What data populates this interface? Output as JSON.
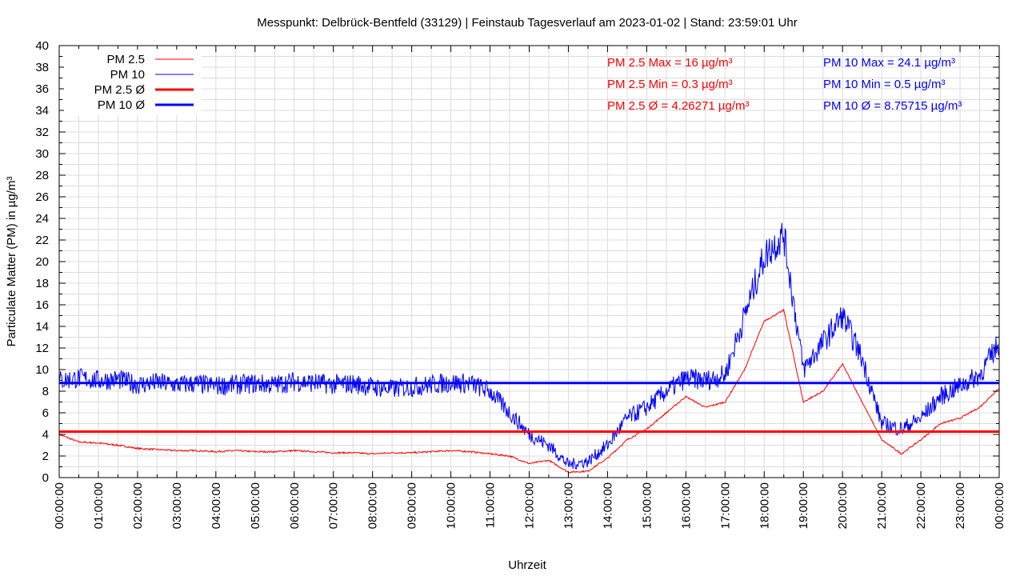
{
  "chart_data": {
    "type": "line",
    "title": "Messpunkt: Delbrück-Bentfeld (33129) | Feinstaub Tagesverlauf am 2023-01-02 | Stand: 23:59:01 Uhr",
    "xlabel": "Uhrzeit",
    "ylabel": "Particulate Matter (PM) in µg/m³",
    "ylim": [
      0,
      40
    ],
    "yticks": [
      "0",
      "2",
      "4",
      "6",
      "8",
      "10",
      "12",
      "14",
      "16",
      "18",
      "20",
      "22",
      "24",
      "26",
      "28",
      "30",
      "32",
      "34",
      "36",
      "38",
      "40"
    ],
    "xticks": [
      "00:00:00",
      "01:00:00",
      "02:00:00",
      "03:00:00",
      "04:00:00",
      "05:00:00",
      "06:00:00",
      "07:00:00",
      "08:00:00",
      "09:00:00",
      "10:00:00",
      "11:00:00",
      "12:00:00",
      "13:00:00",
      "14:00:00",
      "15:00:00",
      "16:00:00",
      "17:00:00",
      "18:00:00",
      "19:00:00",
      "20:00:00",
      "21:00:00",
      "22:00:00",
      "23:00:00",
      "00:00:00"
    ],
    "grid": true,
    "legend_position": "top-left",
    "x_hours": [
      0,
      0.5,
      1,
      1.5,
      2,
      2.5,
      3,
      3.5,
      4,
      4.5,
      5,
      5.5,
      6,
      6.5,
      7,
      7.5,
      8,
      8.5,
      9,
      9.5,
      10,
      10.5,
      11,
      11.5,
      12,
      12.5,
      13,
      13.5,
      14,
      14.5,
      15,
      15.5,
      16,
      16.5,
      17,
      17.5,
      18,
      18.5,
      19,
      19.5,
      20,
      20.5,
      21,
      21.5,
      22,
      22.5,
      23,
      23.5,
      24
    ],
    "series": [
      {
        "name": "PM 2.5",
        "color": "#ff0000",
        "values": [
          4,
          3.3,
          3.2,
          3,
          2.7,
          2.6,
          2.5,
          2.5,
          2.4,
          2.5,
          2.4,
          2.4,
          2.5,
          2.4,
          2.3,
          2.3,
          2.2,
          2.3,
          2.3,
          2.4,
          2.5,
          2.4,
          2.2,
          2,
          1.3,
          1.6,
          0.5,
          0.6,
          1.8,
          3.5,
          4.5,
          6,
          7.5,
          6.5,
          7,
          10,
          14.5,
          15.5,
          7,
          8,
          10.5,
          7,
          3.5,
          2.2,
          3.5,
          5,
          5.5,
          6.5,
          8.3
        ]
      },
      {
        "name": "PM 10",
        "color": "#0000ff",
        "values": [
          9,
          9.2,
          9,
          9.1,
          8.6,
          8.8,
          8.6,
          8.7,
          8.5,
          8.6,
          8.7,
          8.6,
          8.9,
          8.8,
          8.6,
          8.7,
          8.4,
          8.2,
          8.4,
          8.6,
          8.8,
          8.7,
          8,
          6,
          4,
          3,
          1.2,
          1.5,
          3,
          5.5,
          6.5,
          8,
          9.2,
          9,
          9.5,
          15,
          20.5,
          22.5,
          10,
          12.5,
          15,
          11,
          5,
          4.5,
          5.5,
          7.5,
          8.5,
          9.5,
          12.5
        ]
      },
      {
        "name": "PM 2.5 Ø",
        "color": "#ff0000",
        "value": 4.26271
      },
      {
        "name": "PM 10 Ø",
        "color": "#0000ff",
        "value": 8.75715
      }
    ],
    "legend": [
      "PM 2.5",
      "PM 10",
      "PM 2.5 Ø",
      "PM 10 Ø"
    ],
    "annotations": {
      "pm25": [
        "PM 2.5 Max = 16 µg/m³",
        "PM 2.5 Min = 0.3 µg/m³",
        "PM 2.5 Ø = 4.26271 µg/m³"
      ],
      "pm10": [
        "PM 10 Max = 24.1 µg/m³",
        "PM 10 Min = 0.5 µg/m³",
        "PM 10 Ø = 8.75715 µg/m³"
      ]
    }
  }
}
